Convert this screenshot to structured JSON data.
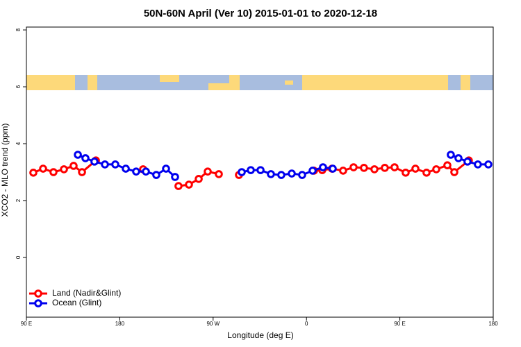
{
  "chart_data": {
    "type": "line",
    "title": "50N-60N April (Ver 10)   2015-01-01 to 2020-12-18",
    "x_label": "Longitude (deg E)",
    "y_label": "XCO2 - MLO trend (ppm)",
    "xlim": [
      90,
      540
    ],
    "xticks": [
      {
        "value": 90,
        "label": "90 E"
      },
      180,
      {
        "value": 270,
        "label": "90 W"
      },
      {
        "value": 360,
        "label": "0"
      },
      {
        "value": 450,
        "label": "90 E"
      },
      {
        "value": 540,
        "label": "180"
      }
    ],
    "ylim": [
      -2.1,
      8.1
    ],
    "yticks": [
      0,
      2,
      4,
      6,
      8
    ],
    "legend": "bottom-left",
    "series": [
      {
        "name": "Land (Nadir&Glint)",
        "color": "#ff0000",
        "x": [
          96.7,
          106.1,
          116.1,
          126.2,
          135.5,
          143.6,
          157.0,
          null,
          202.5,
          null,
          236.6,
          246.7,
          256.1,
          264.8,
          275.5,
          null,
          294.9,
          null,
          367.2,
          375.2,
          384.6,
          395.3,
          405.4,
          415.4,
          425.5,
          435.5,
          444.9,
          455.6,
          465.0,
          475.7,
          485.1,
          495.8,
          502.5,
          516.5
        ],
        "values": [
          2.98,
          3.12,
          3.0,
          3.1,
          3.22,
          3.0,
          3.41,
          null,
          3.1,
          null,
          2.51,
          2.56,
          2.76,
          3.02,
          2.93,
          null,
          2.9,
          null,
          3.05,
          3.07,
          3.12,
          3.05,
          3.17,
          3.15,
          3.1,
          3.15,
          3.17,
          2.98,
          3.12,
          2.98,
          3.1,
          3.24,
          3.0,
          3.41
        ]
      },
      {
        "name": "Ocean (Glint)",
        "color": "#0000ee",
        "x": [
          139.6,
          146.9,
          155.6,
          165.7,
          175.7,
          185.8,
          195.8,
          205.2,
          215.2,
          224.6,
          233.3,
          null,
          297.6,
          306.3,
          315.7,
          325.7,
          335.7,
          345.8,
          355.8,
          365.9,
          375.9,
          385.3,
          null,
          499.1,
          506.5,
          515.2,
          525.2,
          535.3
        ],
        "values": [
          3.61,
          3.49,
          3.37,
          3.27,
          3.27,
          3.12,
          3.02,
          3.02,
          2.9,
          3.12,
          2.83,
          null,
          3.0,
          3.07,
          3.07,
          2.93,
          2.9,
          2.95,
          2.9,
          3.05,
          3.17,
          3.12,
          null,
          3.61,
          3.49,
          3.37,
          3.27,
          3.27
        ]
      }
    ]
  }
}
